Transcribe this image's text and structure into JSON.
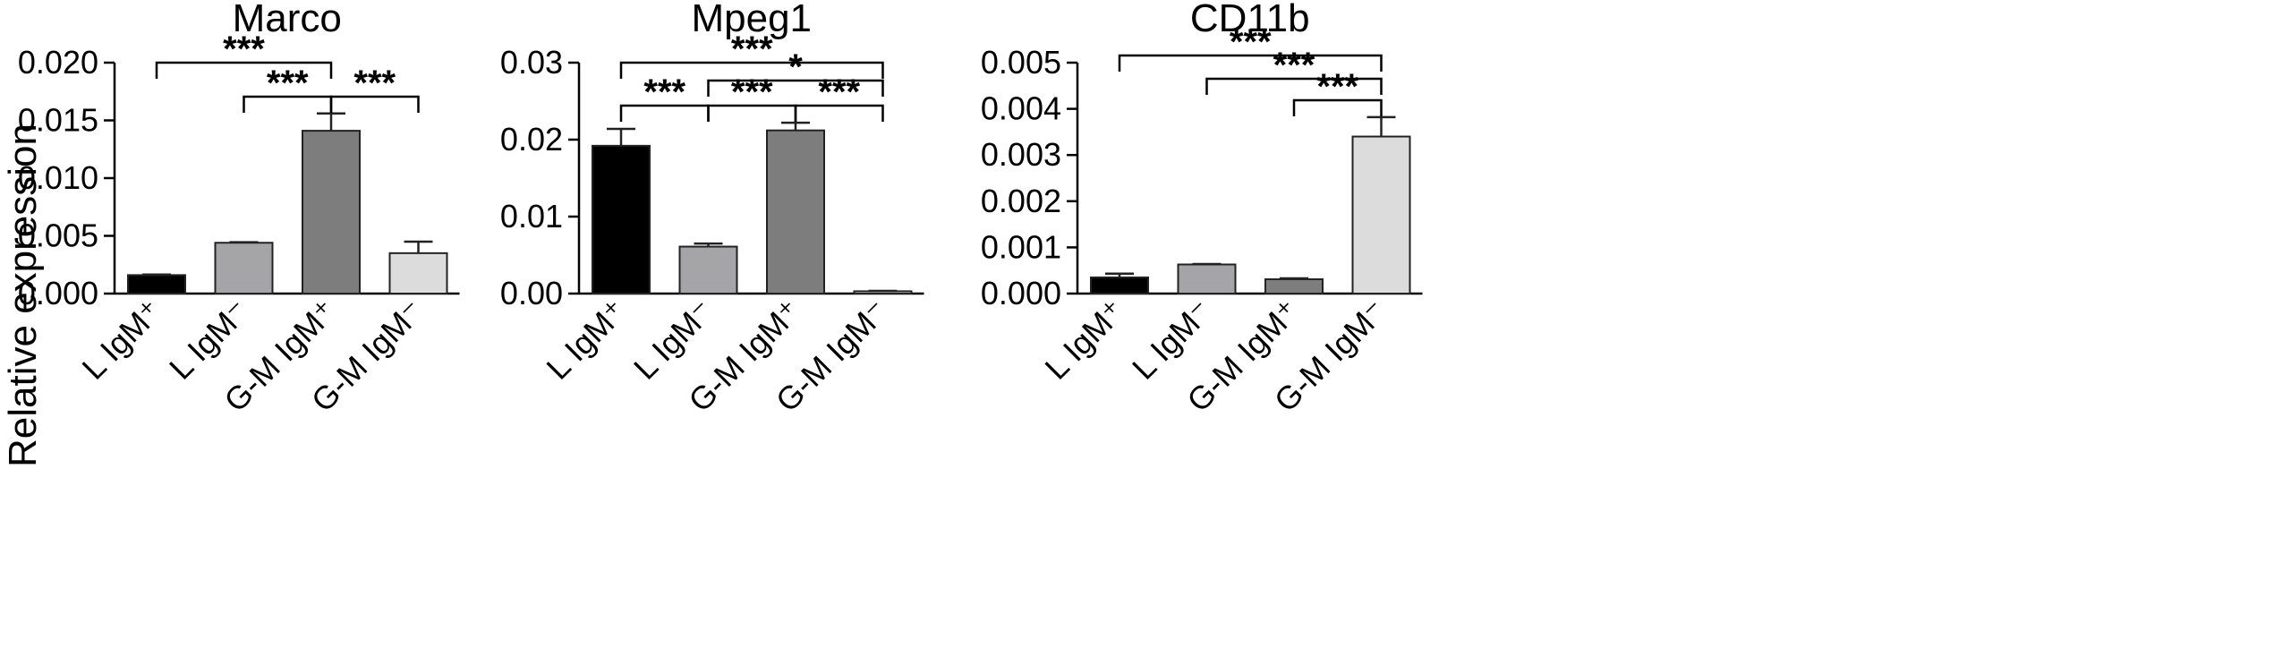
{
  "ylabel": "Relative expression",
  "colors": {
    "L IgM+": "#000000",
    "L IgM-": "#a5a5a8",
    "G-M IgM+": "#7d7d7d",
    "G-M IgM-": "#dcdcdc"
  },
  "chart_data": [
    {
      "type": "bar",
      "title": "Marco",
      "categories": [
        "L IgM⁺",
        "L IgM⁻",
        "G-M IgM⁺",
        "G-M IgM⁻"
      ],
      "values": [
        0.0016,
        0.0044,
        0.0141,
        0.0035
      ],
      "errors": [
        5e-05,
        5e-05,
        0.0015,
        0.001
      ],
      "ylim": [
        0,
        0.02
      ],
      "yticks": [
        "0.000",
        "0.005",
        "0.010",
        "0.015",
        "0.020"
      ],
      "yticks_values": [
        0,
        0.005,
        0.01,
        0.015,
        0.02
      ],
      "significance": [
        {
          "from": 0,
          "to": 2,
          "label": "***"
        },
        {
          "from": 1,
          "to": 2,
          "label": "***"
        },
        {
          "from": 2,
          "to": 3,
          "label": "***"
        }
      ]
    },
    {
      "type": "bar",
      "title": "Mpeg1",
      "categories": [
        "L IgM⁺",
        "L IgM⁻",
        "G-M IgM⁺",
        "G-M IgM⁻"
      ],
      "values": [
        0.0192,
        0.0061,
        0.0212,
        0.0003
      ],
      "errors": [
        0.0022,
        0.0004,
        0.001,
        5e-05
      ],
      "ylim": [
        0,
        0.03
      ],
      "yticks": [
        "0.00",
        "0.01",
        "0.02",
        "0.03"
      ],
      "yticks_values": [
        0,
        0.01,
        0.02,
        0.03
      ],
      "significance": [
        {
          "from": 0,
          "to": 3,
          "label": "***"
        },
        {
          "from": 1,
          "to": 3,
          "label": "*"
        },
        {
          "from": 0,
          "to": 1,
          "label": "***"
        },
        {
          "from": 1,
          "to": 2,
          "label": "***"
        },
        {
          "from": 2,
          "to": 3,
          "label": "***"
        }
      ]
    },
    {
      "type": "bar",
      "title": "CD11b",
      "categories": [
        "L IgM⁺",
        "L IgM⁻",
        "G-M IgM⁺",
        "G-M IgM⁻"
      ],
      "values": [
        0.00035,
        0.00063,
        0.00031,
        0.0034
      ],
      "errors": [
        8e-05,
        1e-05,
        2e-05,
        0.00042
      ],
      "ylim": [
        0,
        0.005
      ],
      "yticks": [
        "0.000",
        "0.001",
        "0.002",
        "0.003",
        "0.004",
        "0.005"
      ],
      "yticks_values": [
        0,
        0.001,
        0.002,
        0.003,
        0.004,
        0.005
      ],
      "significance": [
        {
          "from": 0,
          "to": 3,
          "label": "***"
        },
        {
          "from": 1,
          "to": 3,
          "label": "***"
        },
        {
          "from": 2,
          "to": 3,
          "label": "***"
        }
      ]
    }
  ]
}
